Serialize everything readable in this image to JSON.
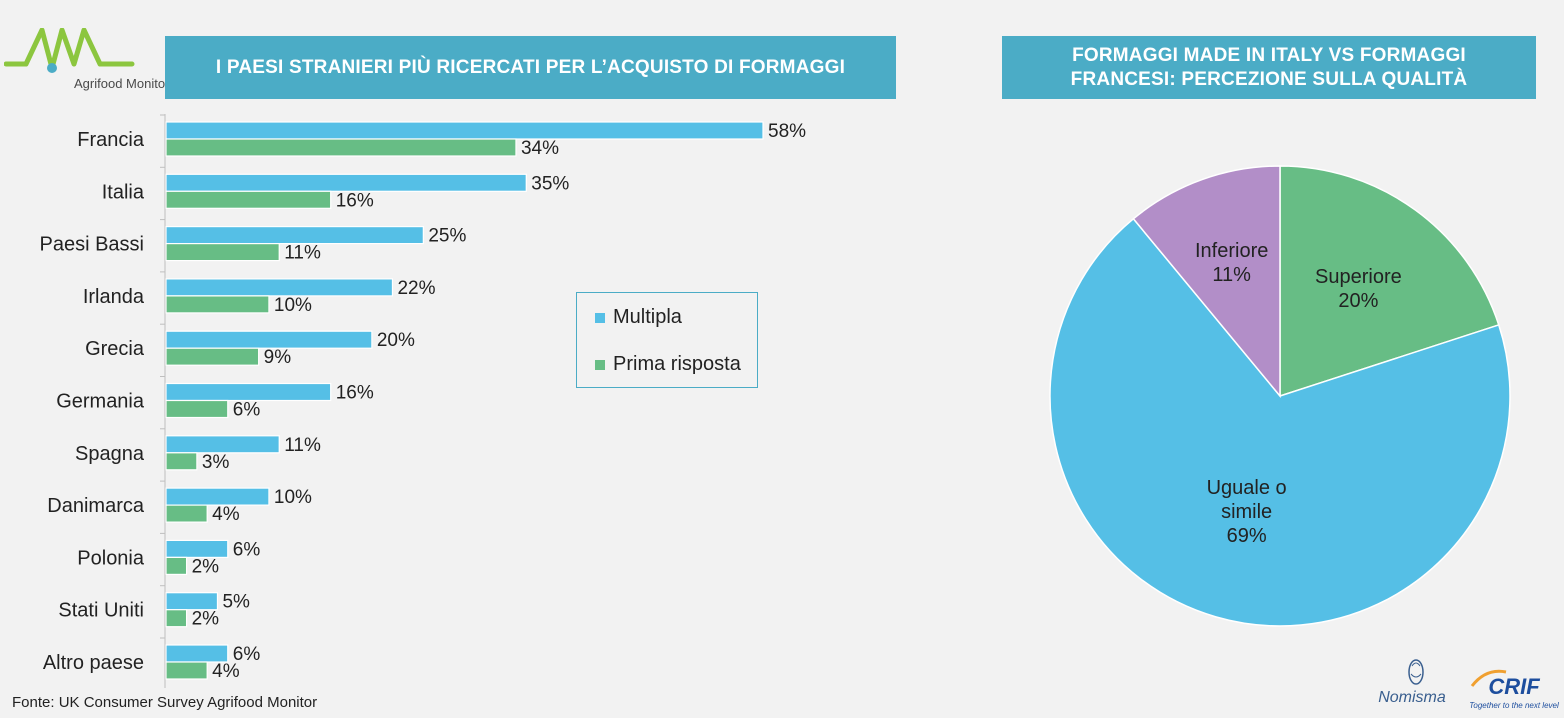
{
  "header": {
    "logo_text": "Agrifood Monitor",
    "left_title": "I PAESI STRANIERI PIÙ RICERCATI PER L’ACQUISTO DI FORMAGGI",
    "right_title_line1": "FORMAGGI MADE IN ITALY VS FORMAGGI",
    "right_title_line2": "FRANCESI: PERCEZIONE SULLA QUALITÀ"
  },
  "colors": {
    "banner": "#4bacc6",
    "multipla": "#55bfe6",
    "prima": "#67bd85",
    "pie_green": "#67bd85",
    "pie_blue": "#55bfe6",
    "pie_purple": "#b28ec8"
  },
  "chart_data": [
    {
      "type": "bar",
      "orientation": "horizontal",
      "categories": [
        "Francia",
        "Italia",
        "Paesi Bassi",
        "Irlanda",
        "Grecia",
        "Germania",
        "Spagna",
        "Danimarca",
        "Polonia",
        "Stati Uniti",
        "Altro paese"
      ],
      "series": [
        {
          "name": "Multipla",
          "values": [
            58,
            35,
            25,
            22,
            20,
            16,
            11,
            10,
            6,
            5,
            6
          ],
          "labels": [
            "58%",
            "35%",
            "25%",
            "22%",
            "20%",
            "16%",
            "11%",
            "10%",
            "6%",
            "5%",
            "6%"
          ]
        },
        {
          "name": "Prima risposta",
          "values": [
            34,
            16,
            11,
            10,
            9,
            6,
            3,
            4,
            2,
            2,
            4
          ],
          "labels": [
            "34%",
            "16%",
            "11%",
            "10%",
            "9%",
            "6%",
            "3%",
            "4%",
            "2%",
            "2%",
            "4%"
          ]
        }
      ],
      "value_unit": "%",
      "xlim": [
        0,
        60
      ],
      "grid": false,
      "legend_position": "right-middle"
    },
    {
      "type": "pie",
      "slices": [
        {
          "label": "Superiore",
          "value": 20,
          "value_label": "20%"
        },
        {
          "label": "Uguale o simile",
          "label_lines": [
            "Uguale o",
            "simile"
          ],
          "value": 69,
          "value_label": "69%"
        },
        {
          "label": "Inferiore",
          "value": 11,
          "value_label": "11%"
        }
      ],
      "start": "top",
      "direction": "clockwise"
    }
  ],
  "footer": {
    "source": "Fonte: UK Consumer Survey Agrifood Monitor",
    "nomisma_text": "Nomisma",
    "crif_text": "CRIF",
    "crif_tagline": "Together to the next level"
  }
}
